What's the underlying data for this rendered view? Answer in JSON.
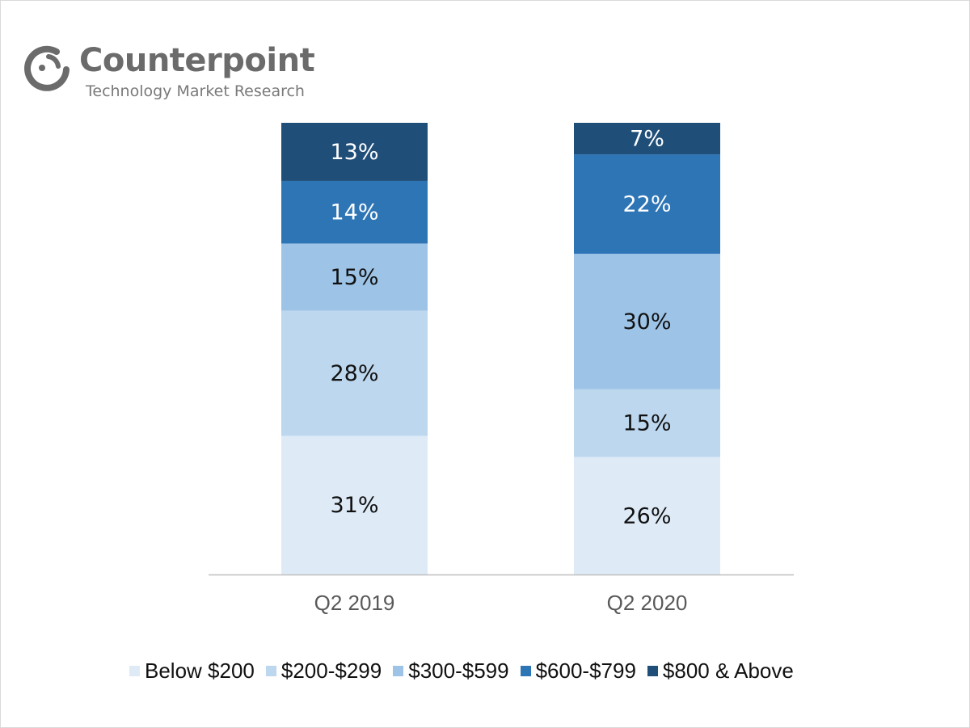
{
  "logo": {
    "name": "Counterpoint",
    "tagline": "Technology Market Research"
  },
  "chart_data": {
    "type": "bar",
    "stacked": true,
    "title": "",
    "xlabel": "",
    "ylabel": "",
    "categories": [
      "Q2 2019",
      "Q2 2020"
    ],
    "series": [
      {
        "name": "Below $200",
        "values": [
          31,
          26
        ],
        "color": "#deebf7",
        "label_color": "#111111"
      },
      {
        "name": "$200-$299",
        "values": [
          28,
          15
        ],
        "color": "#bdd7ee",
        "label_color": "#111111"
      },
      {
        "name": "$300-$599",
        "values": [
          15,
          30
        ],
        "color": "#9dc3e6",
        "label_color": "#111111"
      },
      {
        "name": "$600-$799",
        "values": [
          14,
          22
        ],
        "color": "#2e75b6",
        "label_color": "#ffffff"
      },
      {
        "name": "$800 & Above",
        "values": [
          13,
          7
        ],
        "color": "#1f4e79",
        "label_color": "#ffffff"
      }
    ],
    "value_suffix": "%",
    "grid": false,
    "legend_position": "bottom"
  }
}
